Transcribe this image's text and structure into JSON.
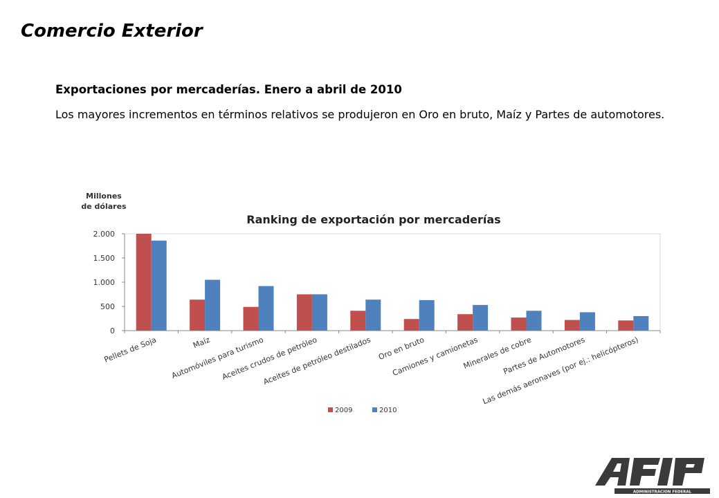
{
  "slide": {
    "title": "Comercio Exterior",
    "subtitle": "Exportaciones por mercaderías. Enero a abril de 2010",
    "body": "Los mayores incrementos en términos relativos se produjeron en Oro en bruto, Maíz y Partes de automotores."
  },
  "chart_data": {
    "type": "bar",
    "title": "Ranking de exportación por mercaderías",
    "ylabel": "Millones de dólares",
    "ylabel_lines": [
      "Millones",
      "de dólares"
    ],
    "xlabel": "",
    "ylim": [
      0,
      2000
    ],
    "yticks": [
      0,
      500,
      1000,
      1500,
      2000
    ],
    "ytick_labels": [
      "0",
      "500",
      "1.000",
      "1.500",
      "2.000"
    ],
    "categories": [
      "Pellets de Soja",
      "Maíz",
      "Automóviles para turismo",
      "Aceites crudos de petróleo",
      "Aceites de petróleo destilados",
      "Oro en bruto",
      "Camiones y camionetas",
      "Minerales de cobre",
      "Partes de Automotores",
      "Las demás aeronaves (por ej.: helicópteros)"
    ],
    "series": [
      {
        "name": "2009",
        "color": "#C0504D",
        "values": [
          2010,
          640,
          490,
          750,
          410,
          240,
          340,
          270,
          220,
          210
        ]
      },
      {
        "name": "2010",
        "color": "#4F81BD",
        "values": [
          1860,
          1050,
          920,
          750,
          640,
          630,
          530,
          410,
          380,
          300
        ]
      }
    ],
    "legend_position": "bottom",
    "grid": false
  },
  "logo": {
    "text": "AFIP",
    "caption": "ADMINISTRACION FEDERAL"
  }
}
